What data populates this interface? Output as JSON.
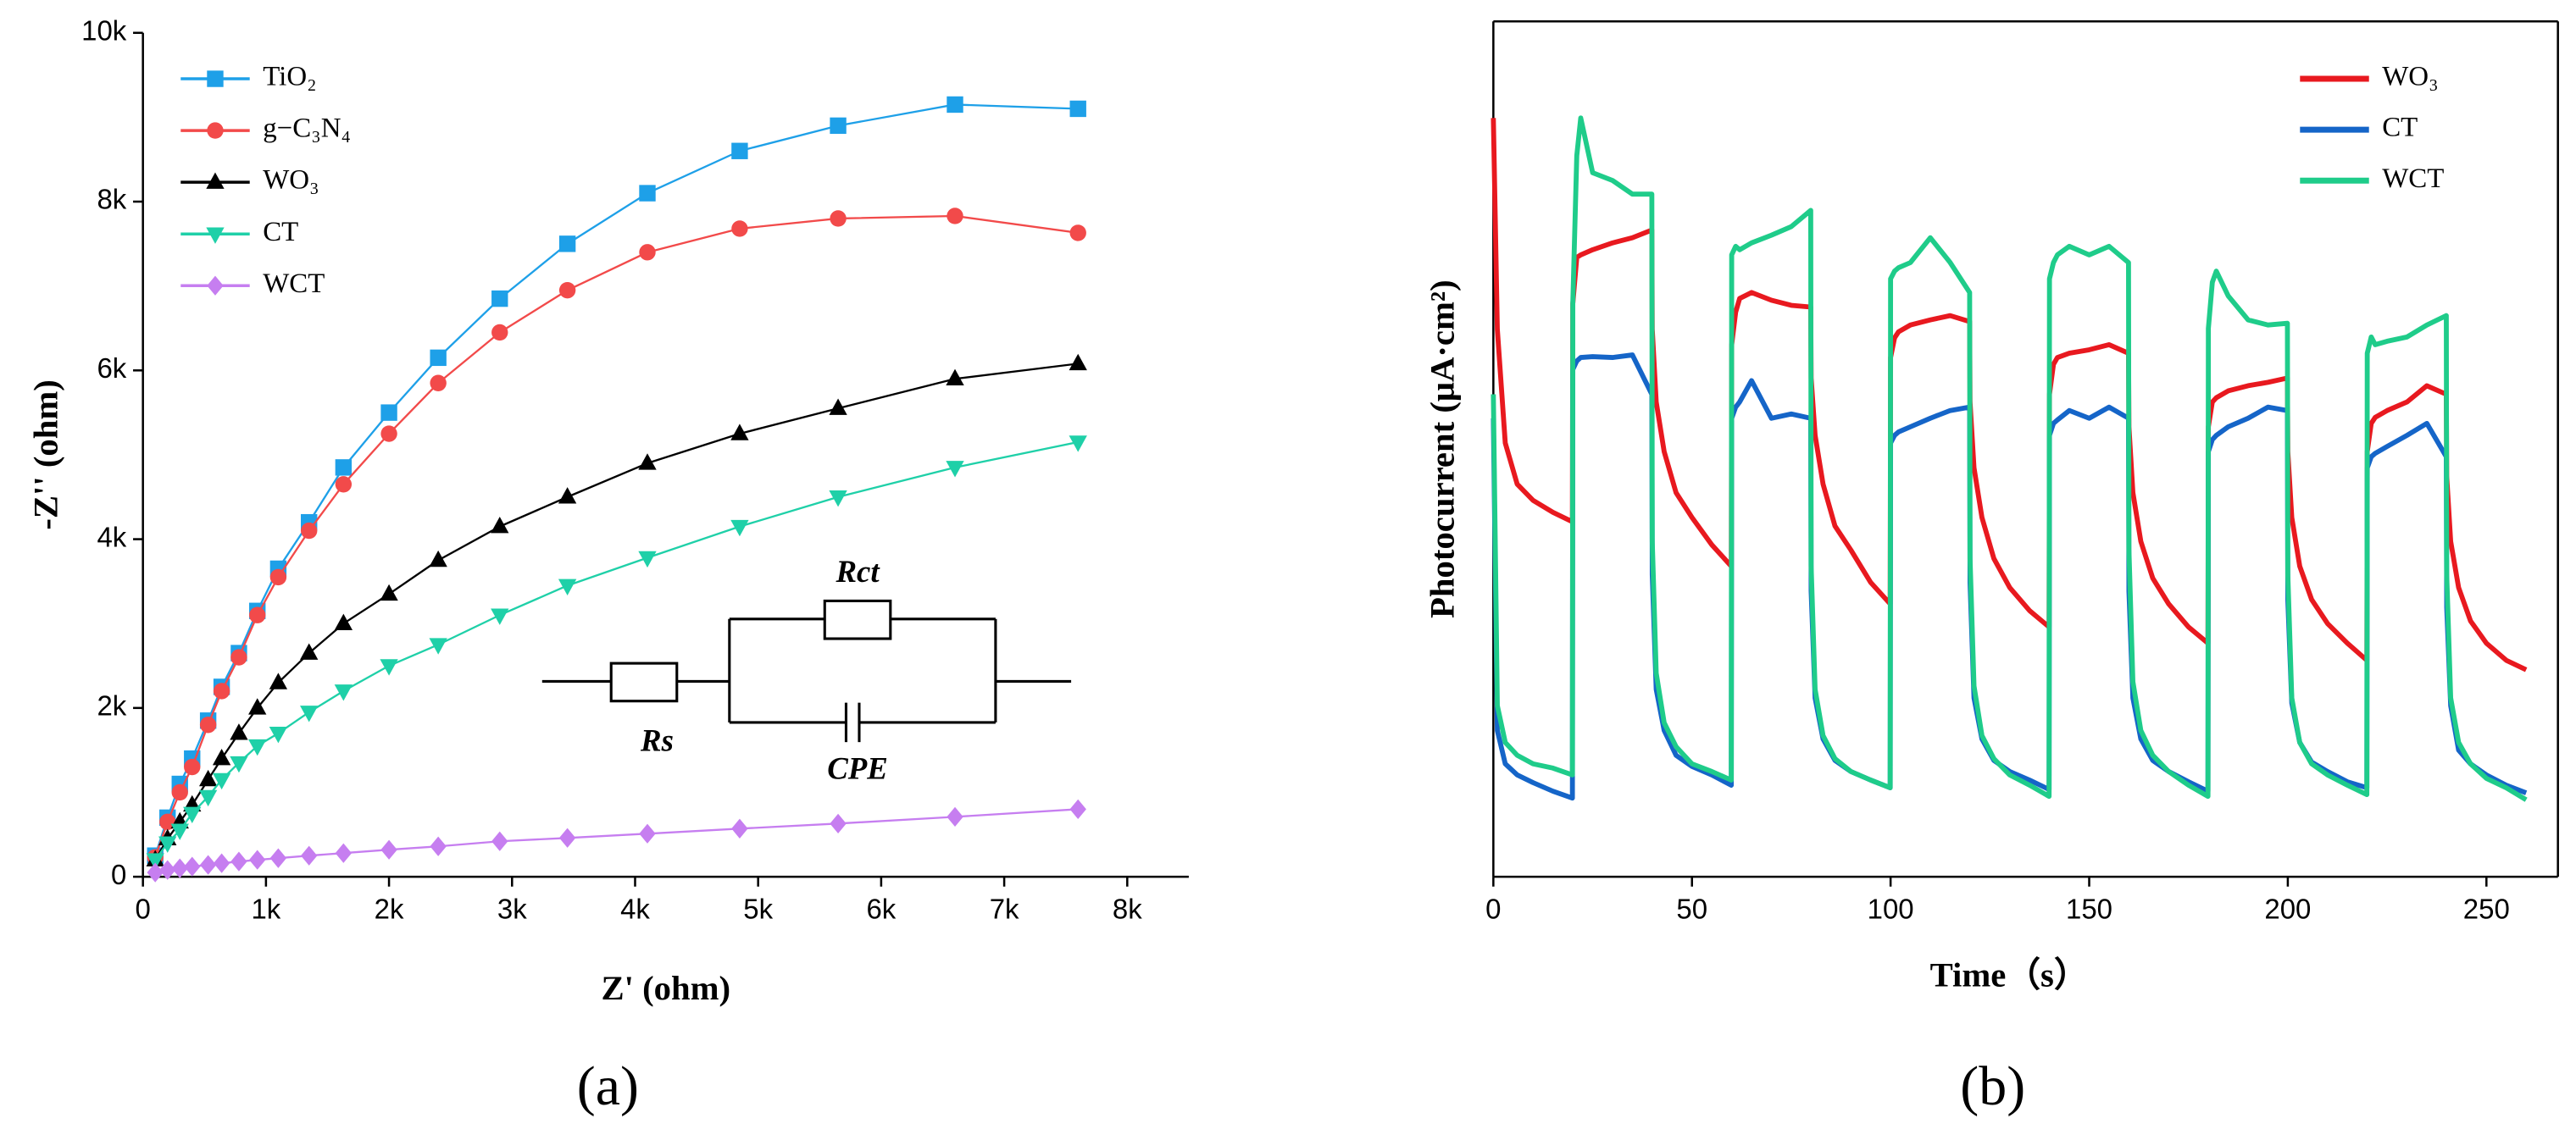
{
  "chart_data": [
    {
      "type": "line",
      "panel_label": "(a)",
      "xlabel": "Z' (ohm)",
      "ylabel": "-Z'' (ohm)",
      "xlim": [
        0,
        8500
      ],
      "ylim": [
        0,
        10000
      ],
      "xticks": [
        0,
        {
          "value": 1000,
          "label": "1k"
        },
        {
          "value": 2000,
          "label": "2k"
        },
        {
          "value": 3000,
          "label": "3k"
        },
        {
          "value": 4000,
          "label": "4k"
        },
        {
          "value": 5000,
          "label": "5k"
        },
        {
          "value": 6000,
          "label": "6k"
        },
        {
          "value": 7000,
          "label": "7k"
        },
        {
          "value": 8000,
          "label": "8k"
        }
      ],
      "yticks": [
        0,
        {
          "value": 2000,
          "label": "2k"
        },
        {
          "value": 4000,
          "label": "4k"
        },
        {
          "value": 6000,
          "label": "6k"
        },
        {
          "value": 8000,
          "label": "8k"
        },
        {
          "value": 10000,
          "label": "10k"
        }
      ],
      "legend": "upper left",
      "annotations": [
        "Rct",
        "Rs",
        "CPE"
      ],
      "x": [
        100,
        200,
        300,
        400,
        530,
        640,
        780,
        930,
        1100,
        1350,
        1630,
        2000,
        2400,
        2900,
        3450,
        4100,
        4850,
        5650,
        6600,
        7600
      ],
      "series": [
        {
          "name": "TiO₂",
          "color": "#1ea0e8",
          "marker": "square",
          "values": [
            250,
            700,
            1100,
            1400,
            1850,
            2250,
            2650,
            3150,
            3650,
            4200,
            4850,
            5500,
            6150,
            6850,
            7500,
            8100,
            8600,
            8900,
            9150,
            9100
          ]
        },
        {
          "name": "g−C₃N₄",
          "color": "#f24a4a",
          "marker": "circle",
          "values": [
            230,
            650,
            1000,
            1300,
            1800,
            2200,
            2600,
            3100,
            3550,
            4100,
            4650,
            5250,
            5850,
            6450,
            6950,
            7400,
            7680,
            7800,
            7830,
            7630
          ]
        },
        {
          "name": "WO₃",
          "color": "#000000",
          "marker": "triangle-up",
          "values": [
            200,
            450,
            650,
            850,
            1150,
            1400,
            1700,
            2000,
            2300,
            2650,
            3000,
            3350,
            3750,
            4150,
            4500,
            4900,
            5250,
            5550,
            5900,
            6080
          ]
        },
        {
          "name": "CT",
          "color": "#1fd0a8",
          "marker": "triangle-down",
          "values": [
            200,
            400,
            550,
            750,
            950,
            1150,
            1350,
            1550,
            1700,
            1950,
            2200,
            2500,
            2750,
            3100,
            3450,
            3780,
            4150,
            4500,
            4850,
            5150
          ]
        },
        {
          "name": "WCT",
          "color": "#c67ef0",
          "marker": "diamond",
          "values": [
            50,
            80,
            100,
            120,
            140,
            160,
            180,
            200,
            220,
            250,
            280,
            320,
            360,
            420,
            460,
            510,
            570,
            630,
            710,
            800
          ]
        }
      ]
    },
    {
      "type": "line",
      "panel_label": "(b)",
      "xlabel": "Time（s）",
      "ylabel": "Photocurrent (μA·cm²)",
      "xlim": [
        0,
        268
      ],
      "ylim": [
        0,
        100
      ],
      "xticks": [
        0,
        50,
        100,
        150,
        200,
        250
      ],
      "legend": "upper right",
      "x": [
        0,
        1,
        3,
        6,
        10,
        15,
        19.9,
        20,
        21,
        22,
        25,
        30,
        35,
        39.9,
        40,
        41,
        43,
        46,
        50,
        55,
        59.9,
        60,
        61,
        62,
        65,
        70,
        75,
        79.9,
        80,
        81,
        83,
        86,
        90,
        95,
        99.9,
        100,
        101,
        102,
        105,
        110,
        115,
        119.9,
        120,
        121,
        123,
        126,
        130,
        135,
        139.9,
        140,
        141,
        142,
        145,
        150,
        155,
        159.9,
        160,
        161,
        163,
        166,
        170,
        175,
        179.9,
        180,
        181,
        182,
        185,
        190,
        195,
        199.9,
        200,
        201,
        203,
        206,
        210,
        215,
        219.9,
        220,
        221,
        222,
        225,
        230,
        235,
        239.9,
        240,
        241,
        243,
        246,
        250,
        255,
        260
      ],
      "series": [
        {
          "name": "WO₃",
          "color": "#e8191f",
          "values": [
            88.7,
            64,
            50.7,
            45.9,
            44,
            42.6,
            41.5,
            67,
            72.4,
            72.7,
            73.3,
            74.1,
            74.7,
            75.6,
            64,
            55.5,
            49.7,
            44.9,
            42,
            38.8,
            36.3,
            62.2,
            66,
            67.6,
            68.3,
            67.4,
            66.8,
            66.6,
            58.3,
            51.6,
            45.9,
            41,
            38.2,
            34.4,
            31.9,
            60.7,
            63,
            63.7,
            64.5,
            65.1,
            65.6,
            64.9,
            55.5,
            47.8,
            42,
            37.2,
            33.8,
            31.1,
            29.2,
            56.4,
            59.9,
            60.7,
            61.2,
            61.6,
            62.2,
            61.2,
            52.6,
            44.9,
            39.2,
            34.9,
            31.9,
            29.2,
            27.3,
            52.6,
            55.5,
            56,
            56.8,
            57.4,
            57.8,
            58.3,
            49.7,
            42,
            36.3,
            32.4,
            29.6,
            27.3,
            25.3,
            49.7,
            53,
            53.7,
            54.5,
            55.5,
            57.4,
            56.4,
            46.8,
            39.2,
            33.8,
            29.9,
            27.3,
            25.3,
            24.2
          ]
        },
        {
          "name": "CT",
          "color": "#1565c8",
          "values": [
            53.6,
            17.1,
            13.2,
            11.9,
            11,
            10,
            9.2,
            59.3,
            60.3,
            60.7,
            60.8,
            60.7,
            61,
            56.4,
            35.3,
            21.9,
            17.1,
            14.2,
            12.9,
            11.9,
            10.7,
            53.6,
            54.9,
            55.5,
            58,
            53.6,
            54.1,
            53.6,
            33.4,
            20.9,
            16.1,
            13.6,
            12.3,
            11.3,
            10.4,
            50.7,
            51.6,
            52,
            52.6,
            53.6,
            54.5,
            54.9,
            34.4,
            20.9,
            16.1,
            13.6,
            12.3,
            11.3,
            10.2,
            51.6,
            53,
            53.4,
            54.5,
            53.6,
            54.9,
            53.6,
            33.4,
            20.9,
            16.1,
            13.6,
            12.3,
            11.1,
            10,
            49.7,
            51.1,
            51.6,
            52.6,
            53.6,
            54.9,
            54.5,
            32.4,
            20.3,
            15.7,
            13.4,
            12.3,
            11.1,
            10.4,
            47.8,
            49.1,
            49.5,
            50.3,
            51.6,
            53,
            49.1,
            31.5,
            20,
            14.8,
            13.2,
            11.9,
            10.7,
            9.8
          ]
        },
        {
          "name": "WCT",
          "color": "#1fcc8a",
          "values": [
            56.4,
            20,
            15.7,
            14.2,
            13.2,
            12.7,
            11.9,
            67,
            84.3,
            88.7,
            82.3,
            81.4,
            79.8,
            79.8,
            39.2,
            23.8,
            18,
            15.2,
            13.2,
            12.3,
            11.3,
            72.7,
            73.7,
            73.3,
            74.1,
            75,
            76,
            77.9,
            36.3,
            21.9,
            16.5,
            13.8,
            12.3,
            11.3,
            10.4,
            69.9,
            70.8,
            71.2,
            71.8,
            74.7,
            71.8,
            68.3,
            37.2,
            22.3,
            16.5,
            13.8,
            11.9,
            10.7,
            9.4,
            69.9,
            71.8,
            72.7,
            73.7,
            72.7,
            73.7,
            71.8,
            38.2,
            22.8,
            17.1,
            14.2,
            12.3,
            10.7,
            9.4,
            64.1,
            69.5,
            70.8,
            67.9,
            65.1,
            64.5,
            64.7,
            35.3,
            20.9,
            15.7,
            13.2,
            11.9,
            10.7,
            9.6,
            61.2,
            63.1,
            62.2,
            62.6,
            63.1,
            64.5,
            65.6,
            35.3,
            20.9,
            15.7,
            13.2,
            11.5,
            10.4,
            9
          ]
        }
      ]
    }
  ]
}
